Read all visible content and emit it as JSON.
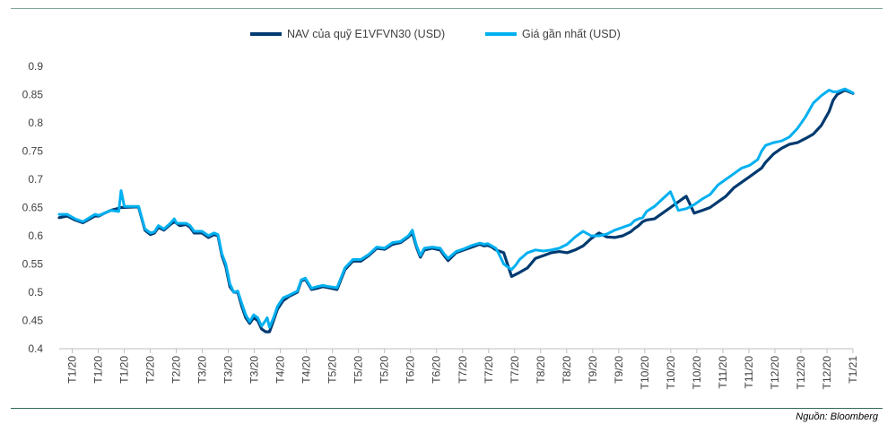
{
  "source_note": "Nguồn: Bloomberg",
  "colors": {
    "nav": "#003a70",
    "price": "#00b0f0",
    "axis": "#bfbfbf",
    "text": "#404040"
  },
  "chart_data": {
    "type": "line",
    "legend_position": "top",
    "grid": false,
    "ylim": [
      0.4,
      0.9
    ],
    "yticks": [
      0.4,
      0.45,
      0.5,
      0.55,
      0.6,
      0.65,
      0.7,
      0.75,
      0.8,
      0.85,
      0.9
    ],
    "ytick_labels": [
      "0.4",
      "0.45",
      "0.5",
      "0.55",
      "0.6",
      "0.65",
      "0.7",
      "0.75",
      "0.8",
      "0.85",
      "0.9"
    ],
    "xtick_labels": [
      "T1/20",
      "T1/20",
      "T1/20",
      "T2/20",
      "T2/20",
      "T3/20",
      "T3/20",
      "T3/20",
      "T4/20",
      "T4/20",
      "T5/20",
      "T5/20",
      "T5/20",
      "T6/20",
      "T6/20",
      "T7/20",
      "T7/20",
      "T7/20",
      "T8/20",
      "T8/20",
      "T9/20",
      "T9/20",
      "T10/20",
      "T10/20",
      "T10/20",
      "T11/20",
      "T11/20",
      "T12/20",
      "T12/20",
      "T12/20",
      "T1/21"
    ],
    "x_range": [
      0,
      1
    ],
    "series": [
      {
        "name": "NAV của quỹ E1VFVN30 (USD)",
        "color": "#003a70",
        "x": [
          0.0,
          0.01,
          0.02,
          0.03,
          0.045,
          0.05,
          0.057,
          0.065,
          0.078,
          0.095,
          0.1,
          0.108,
          0.115,
          0.12,
          0.125,
          0.132,
          0.14,
          0.145,
          0.152,
          0.16,
          0.165,
          0.17,
          0.18,
          0.188,
          0.195,
          0.2,
          0.205,
          0.21,
          0.215,
          0.22,
          0.225,
          0.23,
          0.235,
          0.24,
          0.245,
          0.25,
          0.255,
          0.26,
          0.265,
          0.27,
          0.275,
          0.282,
          0.29,
          0.3,
          0.305,
          0.31,
          0.318,
          0.325,
          0.332,
          0.34,
          0.35,
          0.36,
          0.37,
          0.38,
          0.39,
          0.4,
          0.41,
          0.42,
          0.43,
          0.44,
          0.445,
          0.45,
          0.455,
          0.46,
          0.47,
          0.48,
          0.485,
          0.49,
          0.5,
          0.51,
          0.52,
          0.53,
          0.535,
          0.54,
          0.545,
          0.55,
          0.56,
          0.57,
          0.58,
          0.59,
          0.6,
          0.61,
          0.62,
          0.63,
          0.64,
          0.65,
          0.66,
          0.67,
          0.68,
          0.69,
          0.7,
          0.71,
          0.72,
          0.725,
          0.73,
          0.735,
          0.74,
          0.75,
          0.76,
          0.77,
          0.78,
          0.79,
          0.8,
          0.81,
          0.82,
          0.83,
          0.84,
          0.85,
          0.86,
          0.87,
          0.88,
          0.885,
          0.89,
          0.9,
          0.91,
          0.92,
          0.93,
          0.94,
          0.95,
          0.96,
          0.97,
          0.975,
          0.98,
          0.99,
          1.0
        ],
        "y": [
          0.632,
          0.635,
          0.628,
          0.623,
          0.635,
          0.635,
          0.64,
          0.645,
          0.65,
          0.651,
          0.651,
          0.61,
          0.602,
          0.605,
          0.615,
          0.61,
          0.62,
          0.625,
          0.618,
          0.62,
          0.615,
          0.605,
          0.605,
          0.597,
          0.602,
          0.6,
          0.565,
          0.545,
          0.51,
          0.5,
          0.5,
          0.475,
          0.455,
          0.445,
          0.455,
          0.45,
          0.435,
          0.43,
          0.43,
          0.45,
          0.47,
          0.485,
          0.493,
          0.5,
          0.52,
          0.523,
          0.505,
          0.507,
          0.51,
          0.508,
          0.505,
          0.54,
          0.555,
          0.555,
          0.565,
          0.578,
          0.576,
          0.585,
          0.588,
          0.598,
          0.605,
          0.58,
          0.562,
          0.575,
          0.578,
          0.575,
          0.565,
          0.556,
          0.57,
          0.575,
          0.58,
          0.585,
          0.582,
          0.583,
          0.58,
          0.575,
          0.57,
          0.528,
          0.535,
          0.543,
          0.56,
          0.565,
          0.57,
          0.572,
          0.57,
          0.575,
          0.582,
          0.595,
          0.605,
          0.598,
          0.597,
          0.6,
          0.607,
          0.613,
          0.618,
          0.625,
          0.628,
          0.63,
          0.64,
          0.65,
          0.66,
          0.67,
          0.64,
          0.645,
          0.65,
          0.66,
          0.67,
          0.685,
          0.695,
          0.705,
          0.715,
          0.72,
          0.73,
          0.745,
          0.755,
          0.762,
          0.765,
          0.772,
          0.78,
          0.795,
          0.82,
          0.84,
          0.85,
          0.858,
          0.852
        ]
      },
      {
        "name": "Giá gần nhất (USD)",
        "color": "#00b0f0",
        "x": [
          0.0,
          0.01,
          0.02,
          0.03,
          0.045,
          0.05,
          0.057,
          0.065,
          0.075,
          0.078,
          0.082,
          0.095,
          0.1,
          0.108,
          0.115,
          0.12,
          0.125,
          0.132,
          0.14,
          0.145,
          0.148,
          0.152,
          0.16,
          0.165,
          0.17,
          0.18,
          0.188,
          0.195,
          0.2,
          0.205,
          0.21,
          0.215,
          0.22,
          0.225,
          0.23,
          0.235,
          0.24,
          0.245,
          0.25,
          0.255,
          0.26,
          0.262,
          0.265,
          0.27,
          0.275,
          0.282,
          0.29,
          0.3,
          0.305,
          0.31,
          0.318,
          0.325,
          0.332,
          0.34,
          0.35,
          0.36,
          0.37,
          0.38,
          0.39,
          0.4,
          0.41,
          0.42,
          0.43,
          0.44,
          0.445,
          0.45,
          0.455,
          0.46,
          0.47,
          0.48,
          0.485,
          0.49,
          0.5,
          0.51,
          0.52,
          0.53,
          0.535,
          0.54,
          0.545,
          0.55,
          0.555,
          0.56,
          0.57,
          0.575,
          0.58,
          0.59,
          0.6,
          0.61,
          0.62,
          0.63,
          0.64,
          0.65,
          0.66,
          0.67,
          0.68,
          0.69,
          0.7,
          0.71,
          0.72,
          0.725,
          0.73,
          0.735,
          0.74,
          0.75,
          0.76,
          0.77,
          0.78,
          0.79,
          0.8,
          0.81,
          0.82,
          0.83,
          0.84,
          0.85,
          0.86,
          0.87,
          0.88,
          0.885,
          0.89,
          0.9,
          0.91,
          0.92,
          0.93,
          0.94,
          0.95,
          0.96,
          0.97,
          0.975,
          0.98,
          0.99,
          1.0
        ],
        "y": [
          0.638,
          0.638,
          0.63,
          0.625,
          0.638,
          0.636,
          0.64,
          0.645,
          0.643,
          0.68,
          0.652,
          0.652,
          0.652,
          0.612,
          0.605,
          0.607,
          0.618,
          0.612,
          0.622,
          0.63,
          0.622,
          0.622,
          0.622,
          0.618,
          0.608,
          0.608,
          0.6,
          0.605,
          0.602,
          0.568,
          0.55,
          0.515,
          0.5,
          0.502,
          0.48,
          0.46,
          0.448,
          0.46,
          0.455,
          0.44,
          0.45,
          0.455,
          0.438,
          0.455,
          0.475,
          0.49,
          0.495,
          0.502,
          0.522,
          0.525,
          0.507,
          0.51,
          0.512,
          0.51,
          0.508,
          0.543,
          0.558,
          0.558,
          0.567,
          0.58,
          0.578,
          0.588,
          0.59,
          0.6,
          0.61,
          0.583,
          0.565,
          0.578,
          0.58,
          0.578,
          0.568,
          0.56,
          0.572,
          0.577,
          0.583,
          0.587,
          0.585,
          0.586,
          0.582,
          0.578,
          0.565,
          0.55,
          0.54,
          0.548,
          0.558,
          0.57,
          0.575,
          0.573,
          0.575,
          0.578,
          0.585,
          0.598,
          0.608,
          0.6,
          0.6,
          0.603,
          0.61,
          0.615,
          0.62,
          0.627,
          0.63,
          0.632,
          0.643,
          0.652,
          0.665,
          0.678,
          0.645,
          0.648,
          0.655,
          0.665,
          0.673,
          0.69,
          0.7,
          0.71,
          0.72,
          0.725,
          0.735,
          0.75,
          0.76,
          0.765,
          0.768,
          0.775,
          0.79,
          0.81,
          0.835,
          0.848,
          0.858,
          0.855,
          0.855,
          0.86,
          0.853
        ]
      }
    ]
  }
}
